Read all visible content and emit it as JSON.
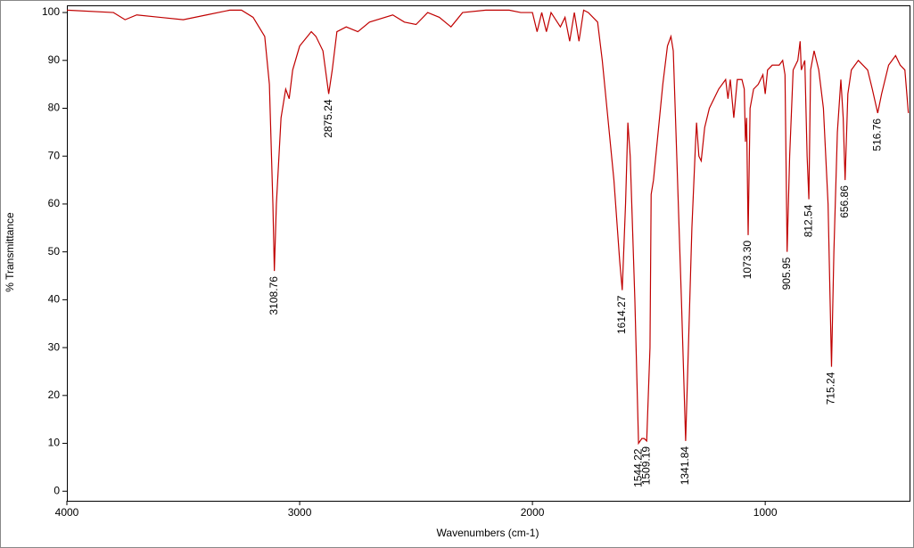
{
  "chart_data": {
    "type": "line",
    "xlabel": "Wavenumbers (cm-1)",
    "ylabel": "% Transmittance",
    "xlim": [
      4000,
      380
    ],
    "ylim": [
      -2,
      101.5
    ],
    "xticks": [
      4000,
      3000,
      2000,
      1000
    ],
    "yticks": [
      0,
      10,
      20,
      30,
      40,
      50,
      60,
      70,
      80,
      90,
      100
    ],
    "x": [
      4000,
      3800,
      3750,
      3700,
      3600,
      3500,
      3400,
      3300,
      3250,
      3200,
      3150,
      3130,
      3115,
      3108.76,
      3100,
      3080,
      3060,
      3045,
      3030,
      3000,
      2950,
      2930,
      2900,
      2875.24,
      2860,
      2840,
      2800,
      2750,
      2700,
      2600,
      2550,
      2500,
      2450,
      2400,
      2350,
      2300,
      2200,
      2100,
      2050,
      2000,
      1980,
      1960,
      1940,
      1920,
      1880,
      1860,
      1840,
      1820,
      1800,
      1780,
      1760,
      1720,
      1700,
      1680,
      1650,
      1625,
      1614.27,
      1600,
      1590,
      1580,
      1560,
      1544.22,
      1530,
      1520,
      1509.19,
      1495,
      1490,
      1480,
      1460,
      1440,
      1420,
      1405,
      1395,
      1380,
      1360,
      1341.84,
      1330,
      1315,
      1300,
      1295,
      1285,
      1275,
      1260,
      1240,
      1200,
      1170,
      1160,
      1150,
      1135,
      1120,
      1100,
      1090,
      1085,
      1080,
      1073.3,
      1065,
      1050,
      1030,
      1010,
      1000,
      990,
      970,
      940,
      925,
      915,
      905.95,
      895,
      880,
      860,
      850,
      845,
      830,
      820,
      812.54,
      805,
      790,
      770,
      750,
      730,
      715.24,
      705,
      690,
      675,
      665,
      656.86,
      645,
      630,
      600,
      560,
      540,
      516.76,
      500,
      470,
      440,
      420,
      400,
      385
    ],
    "series": [
      {
        "color": "#c00000",
        "values": [
          100.5,
          100,
          98.5,
          99.5,
          99,
          98.5,
          99.5,
          100.5,
          100.5,
          99,
          95,
          85,
          60,
          46,
          60,
          78,
          84,
          82,
          88,
          93,
          96,
          95,
          92,
          83,
          88,
          96,
          97,
          96,
          98,
          99.5,
          98,
          97.5,
          100,
          99,
          97,
          100,
          100.5,
          100.5,
          100,
          100,
          96,
          100,
          96,
          100,
          97,
          99,
          94,
          100,
          94,
          100.5,
          100,
          98,
          90,
          80,
          65,
          48,
          42,
          60,
          77,
          70,
          40,
          10,
          11,
          11,
          10.5,
          30,
          62,
          65,
          75,
          85,
          93,
          95,
          92,
          70,
          40,
          10.5,
          30,
          55,
          72,
          77,
          70,
          69,
          76,
          80,
          84,
          86,
          82,
          86,
          78,
          86,
          86,
          84,
          73,
          78,
          53.5,
          80,
          84,
          85,
          87,
          83,
          88,
          89,
          89,
          90,
          87,
          50,
          70,
          88,
          90,
          94,
          88,
          90,
          70,
          61,
          88,
          92,
          88,
          80,
          60,
          26,
          50,
          75,
          86,
          78,
          65,
          83,
          88,
          90,
          88,
          84,
          79,
          83,
          89,
          91,
          89,
          88,
          79
        ]
      }
    ],
    "peaks": [
      {
        "x": 3108.76,
        "y": 46,
        "label": "3108.76"
      },
      {
        "x": 2875.24,
        "y": 83,
        "label": "2875.24"
      },
      {
        "x": 1614.27,
        "y": 42,
        "label": "1614.27"
      },
      {
        "x": 1544.22,
        "y": 10,
        "label": "1544.22"
      },
      {
        "x": 1509.19,
        "y": 10.5,
        "label": "1509.19"
      },
      {
        "x": 1341.84,
        "y": 10.5,
        "label": "1341.84"
      },
      {
        "x": 1073.3,
        "y": 53.5,
        "label": "1073.30"
      },
      {
        "x": 905.95,
        "y": 50,
        "label": "905.95"
      },
      {
        "x": 812.54,
        "y": 61,
        "label": "812.54"
      },
      {
        "x": 715.24,
        "y": 26,
        "label": "715.24"
      },
      {
        "x": 656.86,
        "y": 65,
        "label": "656.86"
      },
      {
        "x": 516.76,
        "y": 79,
        "label": "516.76"
      }
    ]
  }
}
